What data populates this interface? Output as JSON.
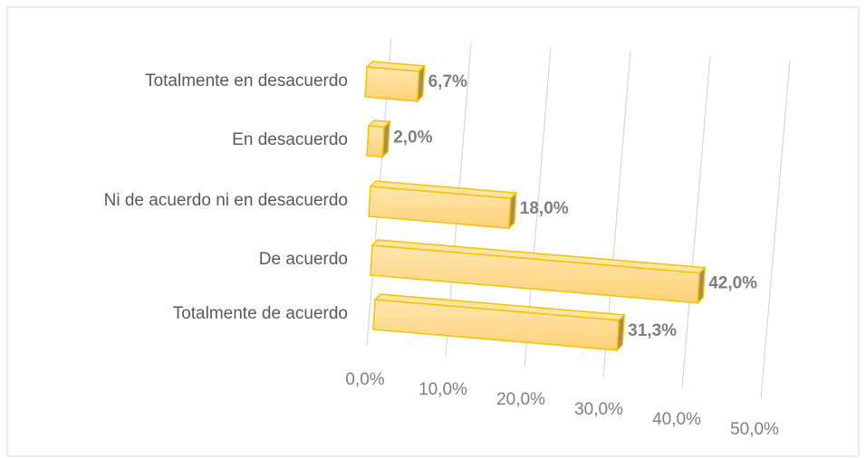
{
  "chart_data": {
    "type": "bar3d_horizontal",
    "categories": [
      "Totalmente en desacuerdo",
      "En desacuerdo",
      "Ni de acuerdo ni en desacuerdo",
      "De acuerdo",
      "Totalmente de acuerdo"
    ],
    "values": [
      6.7,
      2.0,
      18.0,
      42.0,
      31.3
    ],
    "value_labels": [
      "6,7%",
      "2,0%",
      "18,0%",
      "42,0%",
      "31,3%"
    ],
    "color": "#ffd98a",
    "xlim": [
      0,
      50
    ],
    "xticks": [
      {
        "value": 0,
        "label": "0,0%"
      },
      {
        "value": 10,
        "label": "10,0%"
      },
      {
        "value": 20,
        "label": "20,0%"
      },
      {
        "value": 30,
        "label": "30,0%"
      },
      {
        "value": 40,
        "label": "40,0%"
      },
      {
        "value": 50,
        "label": "50,0%"
      }
    ],
    "grid": true
  }
}
